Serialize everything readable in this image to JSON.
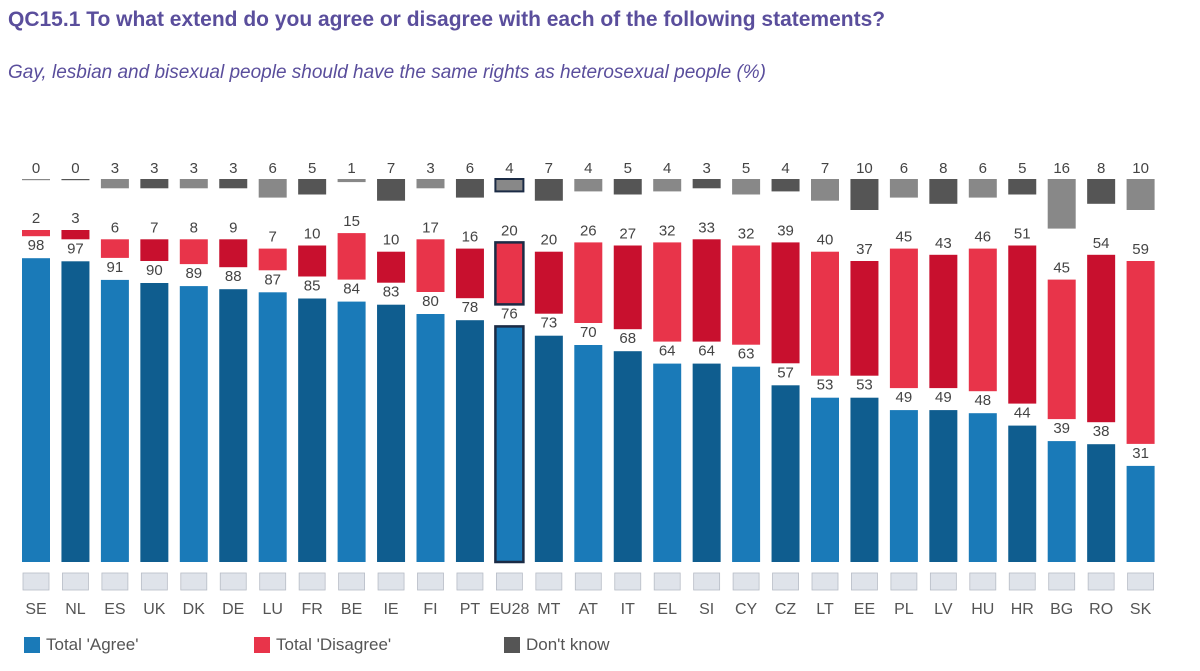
{
  "title": "QC15.1 To what extend do you agree or disagree with each of the following statements?",
  "subtitle": "Gay, lesbian and bisexual people should have the same rights as heterosexual people (%)",
  "colors": {
    "agree": "#1a7ab8",
    "agree_dark": "#0f5d8f",
    "disagree": "#e8344a",
    "disagree_dark": "#c8102e",
    "dontknow": "#888888",
    "dontknow_dark": "#555555"
  },
  "legend": {
    "agree": "Total 'Agree'",
    "disagree": "Total 'Disagree'",
    "dontknow": "Don't know"
  },
  "chart_data": {
    "type": "bar",
    "stacked": true,
    "highlight": "EU28",
    "categories": [
      "SE",
      "NL",
      "ES",
      "UK",
      "DK",
      "DE",
      "LU",
      "FR",
      "BE",
      "IE",
      "FI",
      "PT",
      "EU28",
      "MT",
      "AT",
      "IT",
      "EL",
      "SI",
      "CY",
      "CZ",
      "LT",
      "EE",
      "PL",
      "LV",
      "HU",
      "HR",
      "BG",
      "RO",
      "SK"
    ],
    "series": [
      {
        "name": "Total 'Agree'",
        "values": [
          98,
          97,
          91,
          90,
          89,
          88,
          87,
          85,
          84,
          83,
          80,
          78,
          76,
          73,
          70,
          68,
          64,
          64,
          63,
          57,
          53,
          53,
          49,
          49,
          48,
          44,
          39,
          38,
          31
        ]
      },
      {
        "name": "Total 'Disagree'",
        "values": [
          2,
          3,
          6,
          7,
          8,
          9,
          7,
          10,
          15,
          10,
          17,
          16,
          20,
          20,
          26,
          27,
          32,
          33,
          32,
          39,
          40,
          37,
          45,
          43,
          46,
          51,
          45,
          54,
          59
        ]
      },
      {
        "name": "Don't know",
        "values": [
          0,
          0,
          3,
          3,
          3,
          3,
          6,
          5,
          1,
          7,
          3,
          6,
          4,
          7,
          4,
          5,
          4,
          3,
          5,
          4,
          7,
          10,
          6,
          8,
          6,
          5,
          16,
          8,
          10
        ]
      }
    ]
  }
}
